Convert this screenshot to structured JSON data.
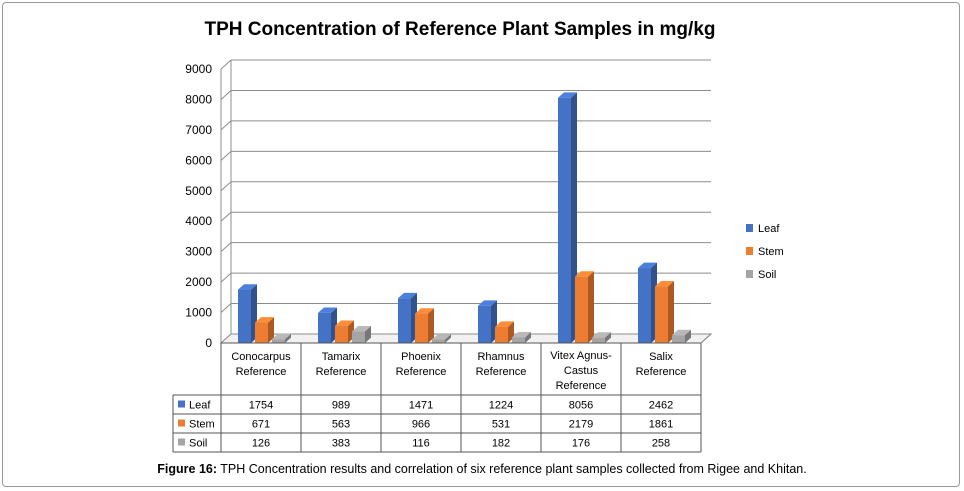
{
  "chart_data": {
    "type": "bar",
    "title": "TPH Concentration of Reference Plant Samples in mg/kg",
    "categories": [
      [
        "Conocarpus",
        "Reference"
      ],
      [
        "Tamarix",
        "Reference"
      ],
      [
        "Phoenix",
        "Reference"
      ],
      [
        "Rhamnus",
        "Reference"
      ],
      [
        "Vitex Agnus-",
        "Castus",
        "Reference"
      ],
      [
        "Salix",
        "Reference"
      ]
    ],
    "series": [
      {
        "name": "Leaf",
        "values": [
          1754,
          989,
          1471,
          1224,
          8056,
          2462
        ],
        "color": "#4472c4"
      },
      {
        "name": "Stem",
        "values": [
          671,
          563,
          966,
          531,
          2179,
          1861
        ],
        "color": "#ed7d31"
      },
      {
        "name": "Soil",
        "values": [
          126,
          383,
          116,
          182,
          176,
          258
        ],
        "color": "#a5a5a5"
      }
    ],
    "ylim": [
      0,
      9000
    ],
    "yticks": [
      0,
      1000,
      2000,
      3000,
      4000,
      5000,
      6000,
      7000,
      8000,
      9000
    ],
    "grid": true,
    "legend": "right",
    "data_table": true
  },
  "caption": {
    "label": "Figure 16:",
    "text": " TPH Concentration results and correlation of six reference plant samples collected from Rigee and Khitan."
  }
}
